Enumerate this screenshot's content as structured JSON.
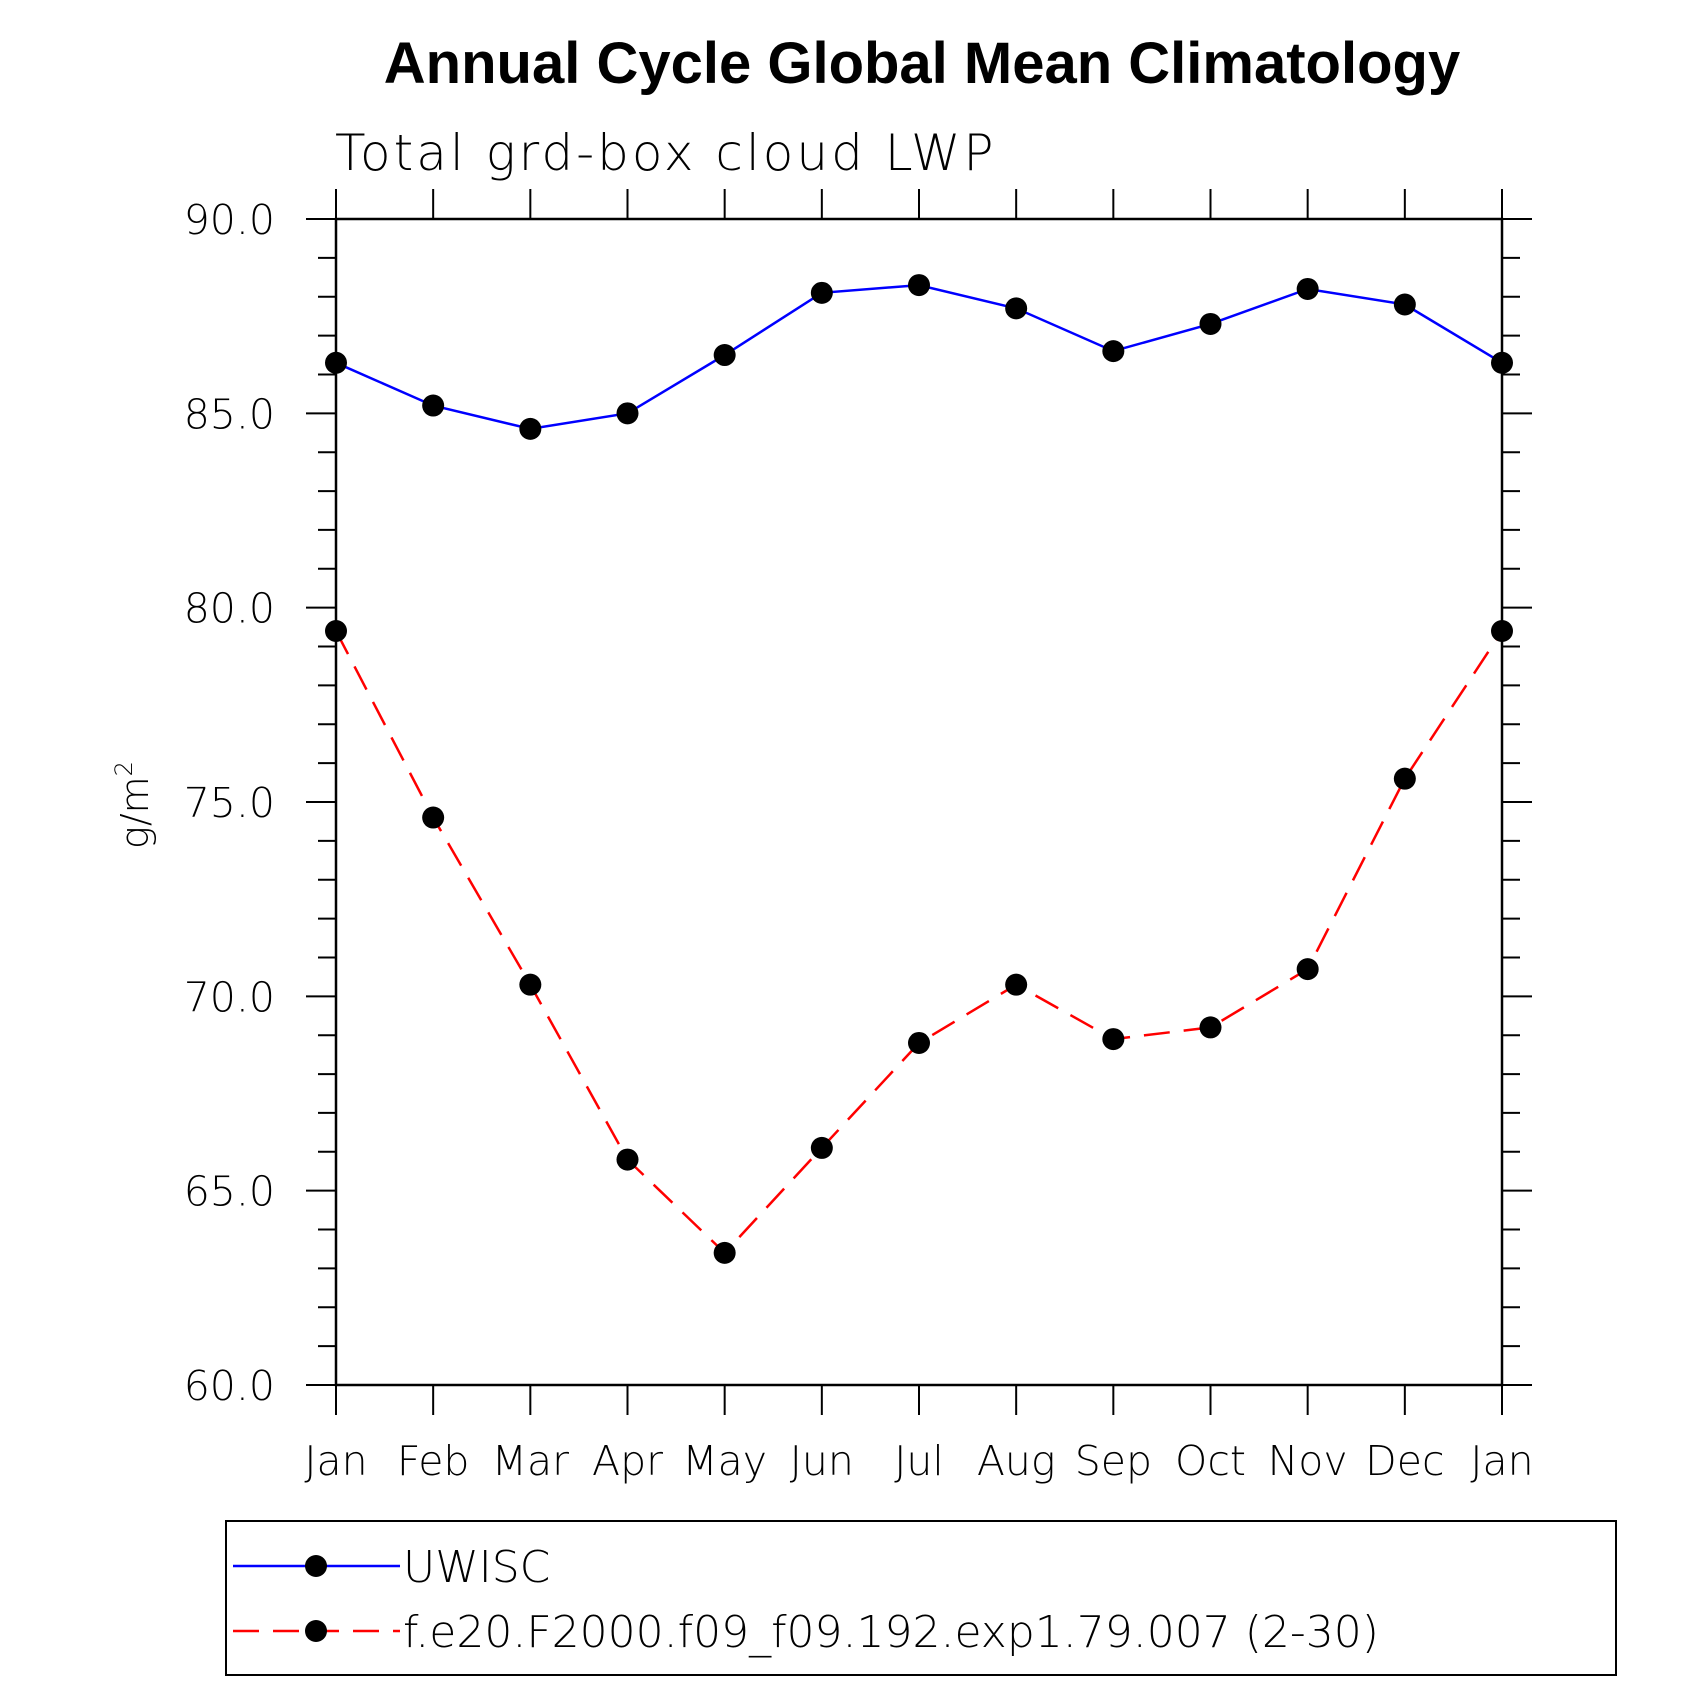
{
  "chart_data": {
    "type": "line",
    "title": "Annual Cycle Global Mean Climatology",
    "subtitle": "Total grd-box cloud LWP",
    "ylabel_base": "g/m",
    "ylabel_sup": "2",
    "xlabel": "",
    "categories": [
      "Jan",
      "Feb",
      "Mar",
      "Apr",
      "May",
      "Jun",
      "Jul",
      "Aug",
      "Sep",
      "Oct",
      "Nov",
      "Dec",
      "Jan"
    ],
    "ylim": [
      60.0,
      90.0
    ],
    "yticks": [
      "60.0",
      "65.0",
      "70.0",
      "75.0",
      "80.0",
      "85.0",
      "90.0"
    ],
    "grid": false,
    "legend_position": "bottom",
    "series": [
      {
        "name": "UWISC",
        "color": "#0000ff",
        "style": "solid",
        "marker_color": "#000000",
        "values": [
          86.3,
          85.2,
          84.6,
          85.0,
          86.5,
          88.1,
          88.3,
          87.7,
          86.6,
          87.3,
          88.2,
          87.8,
          86.3
        ]
      },
      {
        "name": "f.e20.F2000.f09_f09.192.exp1.79.007 (2-30)",
        "color": "#ff0000",
        "style": "dashed",
        "marker_color": "#000000",
        "values": [
          79.4,
          74.6,
          70.3,
          65.8,
          63.4,
          66.1,
          68.8,
          70.3,
          68.9,
          69.2,
          70.7,
          75.6,
          79.4
        ]
      }
    ]
  }
}
